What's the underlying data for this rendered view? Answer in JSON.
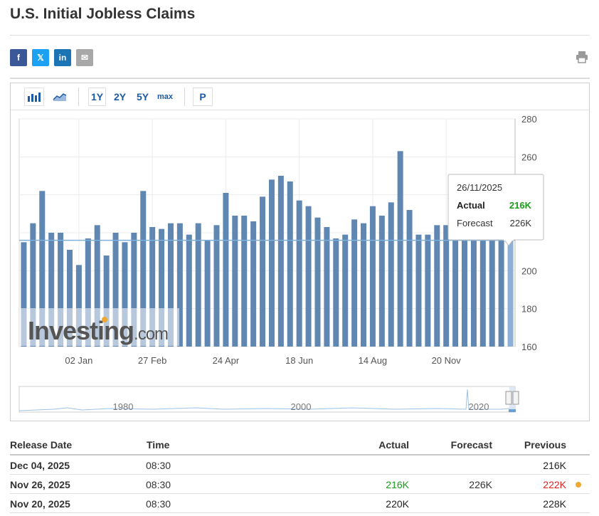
{
  "page_title": "U.S. Initial Jobless Claims",
  "share": [
    {
      "name": "facebook",
      "label": "f",
      "color": "#3b5998"
    },
    {
      "name": "twitter",
      "label": "𝕏",
      "color": "#1da1f2"
    },
    {
      "name": "linkedin",
      "label": "in",
      "color": "#1b74b4"
    },
    {
      "name": "email",
      "label": "✉",
      "color": "#a8a8a8"
    }
  ],
  "toolbar": {
    "range_buttons": [
      "1Y",
      "2Y",
      "5Y",
      "max"
    ],
    "p_label": "P"
  },
  "chart_data": {
    "type": "bar",
    "ylim": [
      160,
      280
    ],
    "y_ticks": [
      160,
      180,
      200,
      220,
      240,
      260,
      280
    ],
    "x_tick_labels": [
      "02 Jan",
      "27 Feb",
      "24 Apr",
      "18 Jun",
      "14 Aug",
      "20 Nov"
    ],
    "x_tick_bars": [
      6,
      14,
      22,
      30,
      38,
      46
    ],
    "values": [
      215,
      225,
      242,
      220,
      220,
      211,
      203,
      217,
      224,
      208,
      220,
      215,
      220,
      242,
      223,
      222,
      225,
      225,
      219,
      225,
      216,
      224,
      241,
      229,
      229,
      226,
      239,
      248,
      250,
      247,
      237,
      234,
      228,
      223,
      217,
      219,
      227,
      225,
      234,
      229,
      236,
      263,
      232,
      219,
      219,
      224,
      224,
      220,
      220,
      220,
      220,
      220,
      220,
      216
    ],
    "bar_color": "#6086b2",
    "hover_color": "#8fb0d6",
    "reference_line": 216,
    "tooltip": {
      "date": "26/11/2025",
      "actual_label": "Actual",
      "actual_value": "216K",
      "forecast_label": "Forecast",
      "forecast_value": "226K"
    },
    "navigator_labels": [
      "1980",
      "2000",
      "2020"
    ],
    "watermark": "Investing.com"
  },
  "table": {
    "headers": {
      "date": "Release Date",
      "time": "Time",
      "actual": "Actual",
      "forecast": "Forecast",
      "previous": "Previous"
    },
    "rows": [
      {
        "date": "Dec 04, 2025",
        "time": "08:30",
        "actual": "",
        "forecast": "",
        "previous": "216K",
        "previous_color": "#222"
      },
      {
        "date": "Nov 26, 2025",
        "time": "08:30",
        "actual": "216K",
        "actual_color": "#1a9e1a",
        "forecast": "226K",
        "previous": "222K",
        "previous_color": "#e02020",
        "dot": true
      },
      {
        "date": "Nov 20, 2025",
        "time": "08:30",
        "actual": "220K",
        "actual_color": "#222",
        "forecast": "",
        "previous": "228K",
        "previous_color": "#222"
      }
    ]
  }
}
